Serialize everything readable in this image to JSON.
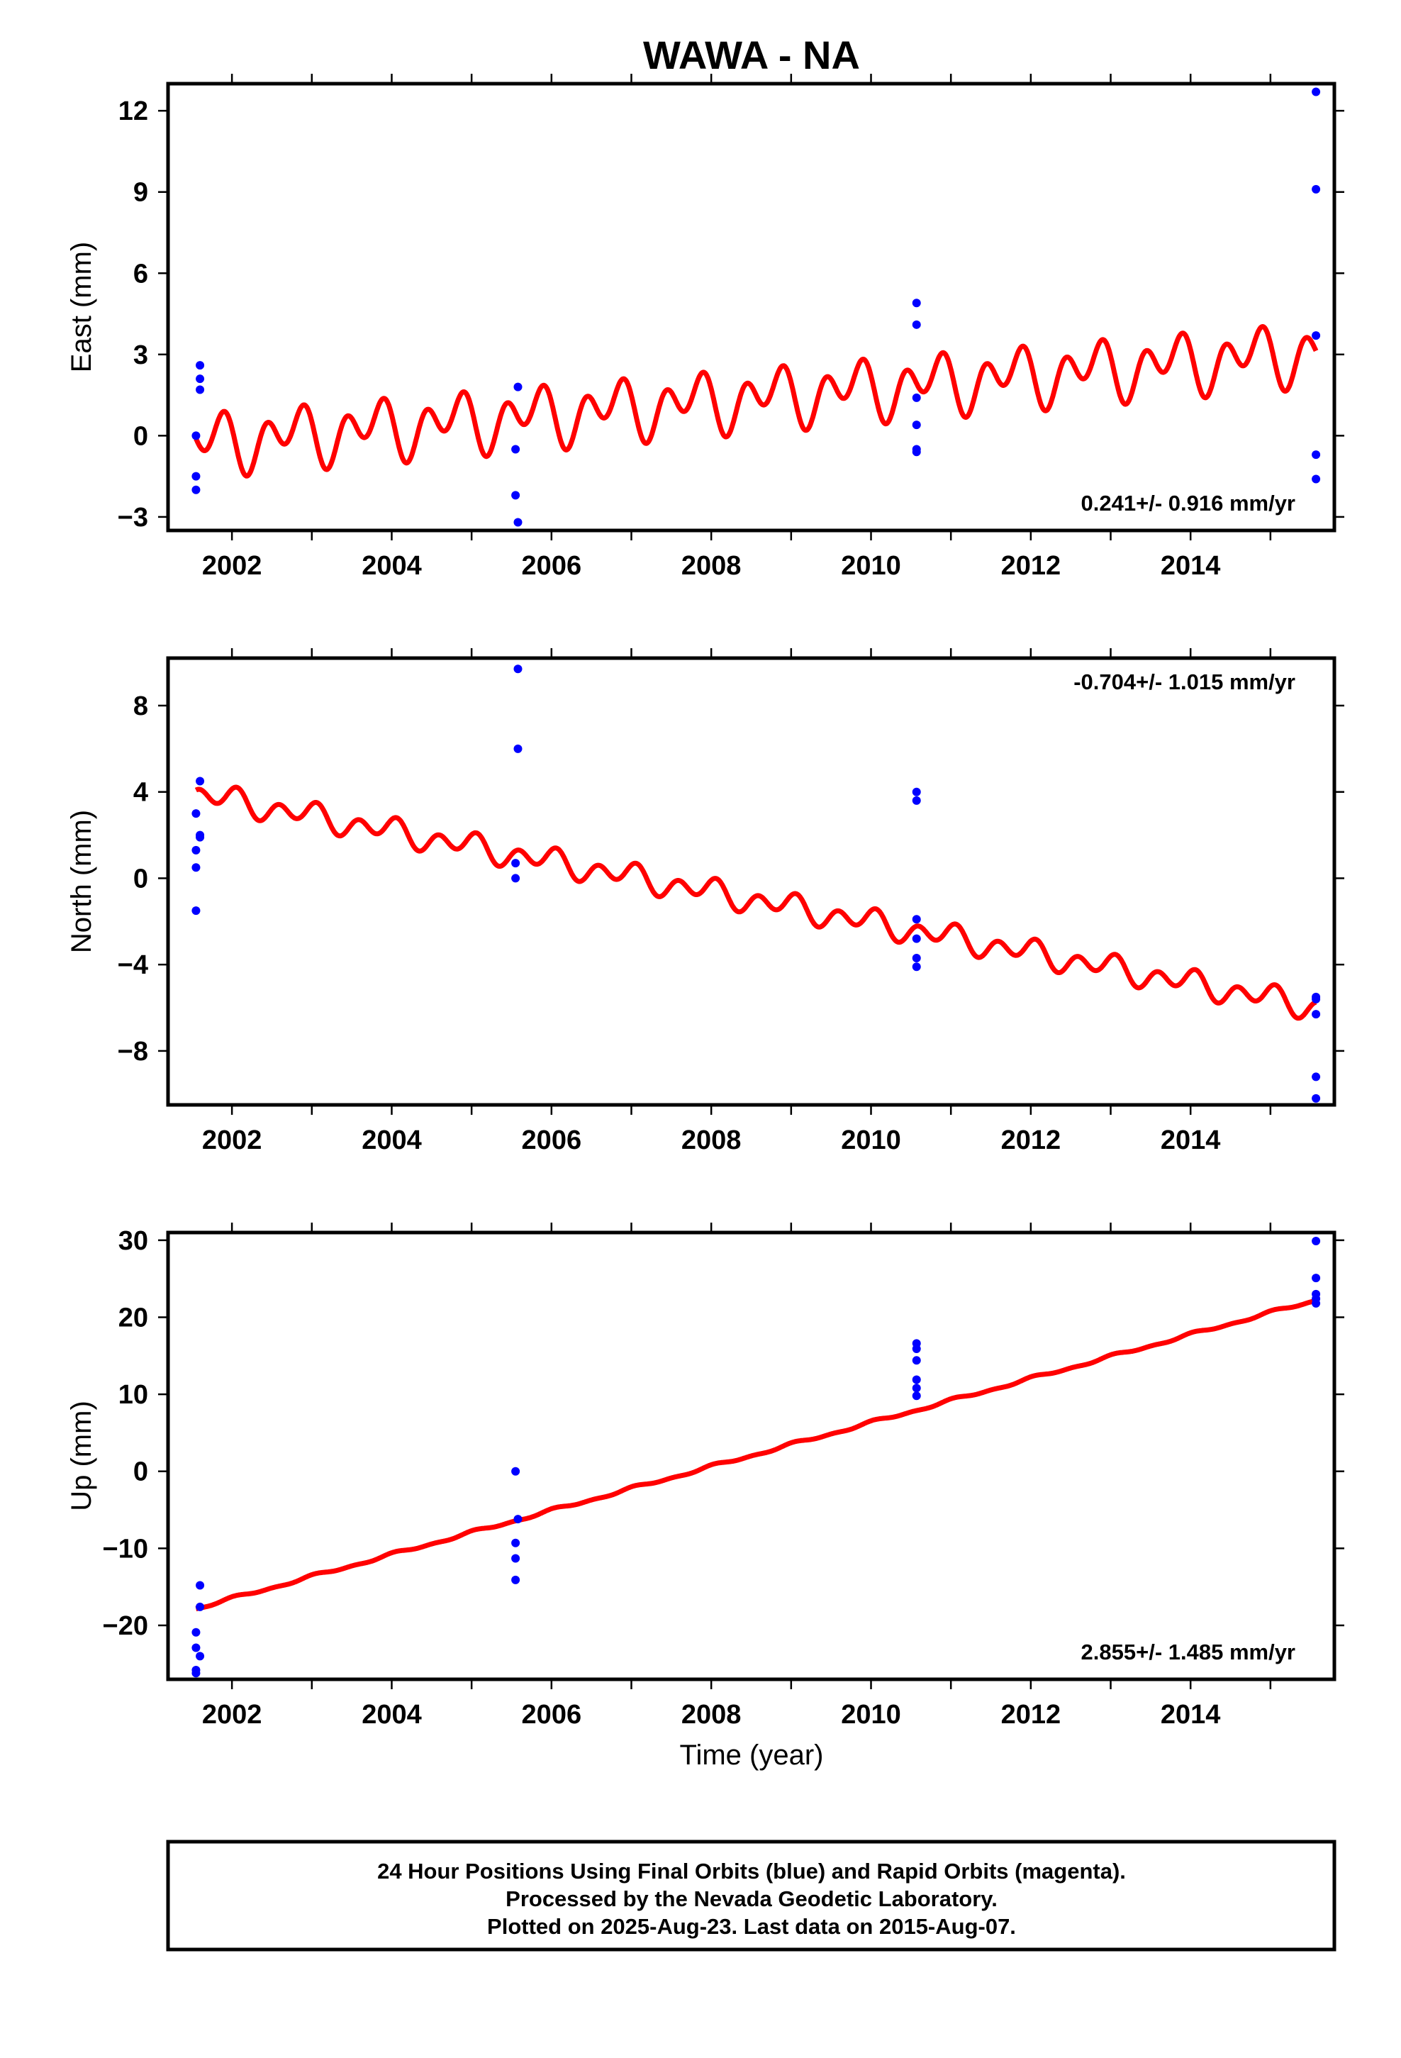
{
  "chart_data": {
    "type": "scatter",
    "title": "WAWA - NA",
    "xlabel": "Time (year)",
    "xlim": [
      2001.2,
      2015.8
    ],
    "x_ticks": [
      "2002",
      "2004",
      "2006",
      "2008",
      "2010",
      "2012",
      "2014"
    ],
    "colors": {
      "observed": "#0000ff",
      "model": "#ff0000"
    },
    "panels": [
      {
        "ylabel": "East (mm)",
        "ylim": [
          -3.5,
          13.0
        ],
        "y_ticks": [
          "−3",
          "0",
          "3",
          "6",
          "9",
          "12"
        ],
        "rate_text": "0.241+/- 0.916 mm/yr",
        "rate_position": "bottom-right",
        "observations": [
          {
            "x": 2001.55,
            "y": 0.0
          },
          {
            "x": 2001.55,
            "y": -1.5
          },
          {
            "x": 2001.55,
            "y": -2.0
          },
          {
            "x": 2001.6,
            "y": 2.6
          },
          {
            "x": 2001.6,
            "y": 2.1
          },
          {
            "x": 2001.6,
            "y": 1.7
          },
          {
            "x": 2005.58,
            "y": 1.8
          },
          {
            "x": 2005.55,
            "y": -0.5
          },
          {
            "x": 2005.55,
            "y": -2.2
          },
          {
            "x": 2005.58,
            "y": -3.2
          },
          {
            "x": 2010.57,
            "y": 4.9
          },
          {
            "x": 2010.57,
            "y": 4.1
          },
          {
            "x": 2010.57,
            "y": 1.4
          },
          {
            "x": 2010.57,
            "y": 0.4
          },
          {
            "x": 2010.57,
            "y": -0.5
          },
          {
            "x": 2010.57,
            "y": -0.6
          },
          {
            "x": 2015.57,
            "y": 12.7
          },
          {
            "x": 2015.57,
            "y": 9.1
          },
          {
            "x": 2015.57,
            "y": 3.7
          },
          {
            "x": 2015.57,
            "y": -0.7
          },
          {
            "x": 2015.57,
            "y": -1.6
          }
        ],
        "model": {
          "x_start": 2001.55,
          "x_end": 2015.57,
          "intercept": -0.3,
          "slope": 0.241,
          "annual_amplitude": 0.6,
          "annual_phase": 0.5,
          "semiannual_amplitude": 0.8,
          "semiannual_phase": 0.2
        }
      },
      {
        "ylabel": "North (mm)",
        "ylim": [
          -10.5,
          10.2
        ],
        "y_ticks": [
          "−8",
          "−4",
          "0",
          "4",
          "8"
        ],
        "rate_text": "-0.704+/- 1.015 mm/yr",
        "rate_position": "top-right",
        "observations": [
          {
            "x": 2001.55,
            "y": 3.0
          },
          {
            "x": 2001.55,
            "y": 1.3
          },
          {
            "x": 2001.55,
            "y": 0.5
          },
          {
            "x": 2001.55,
            "y": -1.5
          },
          {
            "x": 2001.6,
            "y": 4.5
          },
          {
            "x": 2001.6,
            "y": 2.0
          },
          {
            "x": 2001.6,
            "y": 1.9
          },
          {
            "x": 2005.58,
            "y": 9.7
          },
          {
            "x": 2005.58,
            "y": 6.0
          },
          {
            "x": 2005.55,
            "y": 0.7
          },
          {
            "x": 2005.55,
            "y": 0.0
          },
          {
            "x": 2010.57,
            "y": 4.0
          },
          {
            "x": 2010.57,
            "y": 3.6
          },
          {
            "x": 2010.57,
            "y": -1.9
          },
          {
            "x": 2010.57,
            "y": -2.8
          },
          {
            "x": 2010.57,
            "y": -3.7
          },
          {
            "x": 2010.57,
            "y": -4.1
          },
          {
            "x": 2015.57,
            "y": -5.5
          },
          {
            "x": 2015.57,
            "y": -5.6
          },
          {
            "x": 2015.57,
            "y": -6.3
          },
          {
            "x": 2015.57,
            "y": -9.2
          },
          {
            "x": 2015.57,
            "y": -10.2
          }
        ],
        "model": {
          "x_start": 2001.55,
          "x_end": 2015.57,
          "intercept": 3.9,
          "slope": -0.704,
          "annual_amplitude": 0.3,
          "annual_phase": 0.3,
          "semiannual_amplitude": 0.45,
          "semiannual_phase": 0.55
        }
      },
      {
        "ylabel": "Up (mm)",
        "ylim": [
          -27.0,
          31.0
        ],
        "y_ticks": [
          "−20",
          "−10",
          "0",
          "10",
          "20",
          "30"
        ],
        "rate_text": "2.855+/- 1.485 mm/yr",
        "rate_position": "bottom-right",
        "observations": [
          {
            "x": 2001.6,
            "y": -14.8
          },
          {
            "x": 2001.6,
            "y": -17.6
          },
          {
            "x": 2001.55,
            "y": -20.9
          },
          {
            "x": 2001.55,
            "y": -22.9
          },
          {
            "x": 2001.6,
            "y": -24.0
          },
          {
            "x": 2001.55,
            "y": -25.8
          },
          {
            "x": 2001.55,
            "y": -26.2
          },
          {
            "x": 2005.55,
            "y": 0.0
          },
          {
            "x": 2005.58,
            "y": -6.2
          },
          {
            "x": 2005.55,
            "y": -9.3
          },
          {
            "x": 2005.55,
            "y": -11.3
          },
          {
            "x": 2005.55,
            "y": -14.1
          },
          {
            "x": 2010.57,
            "y": 16.6
          },
          {
            "x": 2010.57,
            "y": 15.9
          },
          {
            "x": 2010.57,
            "y": 14.4
          },
          {
            "x": 2010.57,
            "y": 11.9
          },
          {
            "x": 2010.57,
            "y": 10.8
          },
          {
            "x": 2010.57,
            "y": 9.8
          },
          {
            "x": 2015.57,
            "y": 29.9
          },
          {
            "x": 2015.57,
            "y": 25.1
          },
          {
            "x": 2015.57,
            "y": 23.0
          },
          {
            "x": 2015.57,
            "y": 22.4
          },
          {
            "x": 2015.57,
            "y": 21.8
          }
        ],
        "model": {
          "x_start": 2001.55,
          "x_end": 2015.57,
          "intercept": -17.8,
          "slope": 2.855,
          "annual_amplitude": 0.15,
          "annual_phase": 0.2,
          "semiannual_amplitude": 0.1,
          "semiannual_phase": 0.1
        }
      }
    ]
  },
  "footer": {
    "line1": "24 Hour Positions Using Final Orbits (blue) and Rapid Orbits (magenta).",
    "line2": "Processed by the Nevada Geodetic Laboratory.",
    "line3": "Plotted on 2025-Aug-23. Last data on 2015-Aug-07."
  }
}
